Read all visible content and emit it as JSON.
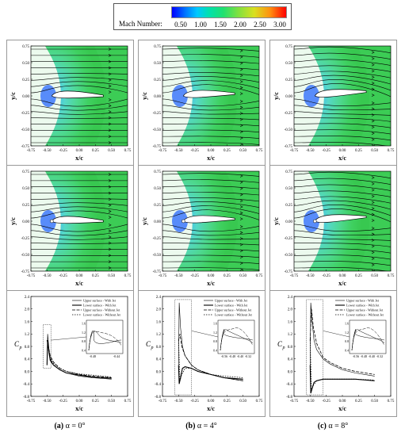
{
  "colorbar": {
    "title": "Mach Number:",
    "ticks": [
      "0.50",
      "1.00",
      "1.50",
      "2.00",
      "2.50",
      "3.00"
    ],
    "colors": [
      "#0000ff",
      "#00c8ff",
      "#20e070",
      "#d8e020",
      "#ff9010",
      "#ff0000"
    ]
  },
  "flow_axes": {
    "xlabel": "x/c",
    "ylabel": "y/c",
    "xticks": [
      "-0.75",
      "-0.50",
      "-0.25",
      "0.00",
      "0.25",
      "0.50",
      "0.75"
    ],
    "yticks": [
      "0.75",
      "0.50",
      "0.25",
      "0.00",
      "-0.25",
      "-0.50",
      "-0.75"
    ]
  },
  "cp_axes": {
    "xlabel": "x/c",
    "ylabel": "C",
    "ylabel_sub": "p",
    "xticks": [
      "-0.75",
      "-0.50",
      "-0.25",
      "0.00",
      "0.25",
      "0.50",
      "0.75"
    ],
    "yticks": [
      "2.4",
      "2.0",
      "1.6",
      "1.2",
      "0.8",
      "0.4",
      "0.0",
      "-0.4",
      "-0.8"
    ]
  },
  "legend": [
    "Upper surface - With Jet",
    "Lower surface - With Jet",
    "Upper surface - Without Jet",
    "Lower surface - Without Jet"
  ],
  "insets": [
    {
      "yticks": [
        "1.6",
        "1.2",
        "0.8",
        "0.4"
      ],
      "xticks": [
        "-0.48",
        "-0.44"
      ]
    },
    {
      "yticks": [
        "1.6",
        "1.2",
        "0.8",
        "0.4"
      ],
      "xticks": [
        "-0.56",
        "-0.48",
        "-0.40",
        "-0.32"
      ]
    },
    {
      "yticks": [
        "1.6",
        "1.2",
        "0.8",
        "0.4"
      ],
      "xticks": [
        "-0.56",
        "-0.48",
        "-0.40",
        "-0.32"
      ]
    }
  ],
  "captions": [
    {
      "letter": "(a)",
      "text": "α = 0°"
    },
    {
      "letter": "(b)",
      "text": "α = 4°"
    },
    {
      "letter": "(c)",
      "text": "α = 8°"
    }
  ],
  "chart_data": [
    {
      "type": "line",
      "panel": "(a) α = 0°",
      "title": "",
      "xlabel": "x/c",
      "ylabel": "Cp",
      "xlim": [
        -0.75,
        0.75
      ],
      "ylim": [
        -0.8,
        2.4
      ],
      "series": [
        {
          "name": "Upper surface - With Jet",
          "x": [
            -0.5,
            -0.49,
            -0.47,
            -0.45,
            -0.4,
            -0.3,
            -0.2,
            0.0,
            0.2,
            0.5
          ],
          "y": [
            0.2,
            1.2,
            0.7,
            0.4,
            0.2,
            0.05,
            -0.05,
            -0.15,
            -0.2,
            -0.25
          ]
        },
        {
          "name": "Lower surface - With Jet",
          "x": [
            -0.5,
            -0.49,
            -0.47,
            -0.45,
            -0.4,
            -0.3,
            -0.2,
            0.0,
            0.2,
            0.5
          ],
          "y": [
            0.2,
            1.0,
            0.6,
            0.35,
            0.2,
            0.05,
            -0.05,
            -0.12,
            -0.18,
            -0.22
          ]
        },
        {
          "name": "Upper surface - Without Jet",
          "x": [
            -0.5,
            -0.48,
            -0.45,
            -0.4,
            -0.3,
            -0.2,
            0.0,
            0.2,
            0.5
          ],
          "y": [
            1.0,
            0.8,
            0.5,
            0.3,
            0.1,
            0.0,
            -0.1,
            -0.15,
            -0.2
          ]
        },
        {
          "name": "Lower surface - Without Jet",
          "x": [
            -0.5,
            -0.48,
            -0.45,
            -0.4,
            -0.3,
            -0.2,
            0.0,
            0.2,
            0.5
          ],
          "y": [
            1.0,
            0.7,
            0.45,
            0.25,
            0.1,
            0.0,
            -0.08,
            -0.12,
            -0.18
          ]
        }
      ]
    },
    {
      "type": "line",
      "panel": "(b) α = 4°",
      "title": "",
      "xlabel": "x/c",
      "ylabel": "Cp",
      "xlim": [
        -0.75,
        0.75
      ],
      "ylim": [
        -0.8,
        2.4
      ],
      "series": [
        {
          "name": "Upper surface - With Jet",
          "x": [
            -0.5,
            -0.49,
            -0.47,
            -0.44,
            -0.4,
            -0.3,
            -0.2,
            0.0,
            0.2,
            0.5
          ],
          "y": [
            0.2,
            2.2,
            1.4,
            0.8,
            0.5,
            0.2,
            0.05,
            -0.1,
            -0.2,
            -0.3
          ]
        },
        {
          "name": "Lower surface - With Jet",
          "x": [
            -0.5,
            -0.49,
            -0.47,
            -0.44,
            -0.4,
            -0.3,
            -0.2,
            0.0,
            0.2,
            0.5
          ],
          "y": [
            0.2,
            -0.4,
            -0.2,
            0.1,
            0.15,
            0.1,
            0.0,
            -0.1,
            -0.2,
            -0.25
          ]
        },
        {
          "name": "Upper surface - Without Jet",
          "x": [
            -0.5,
            -0.48,
            -0.45,
            -0.4,
            -0.3,
            -0.2,
            0.0,
            0.2,
            0.5
          ],
          "y": [
            1.0,
            1.2,
            0.8,
            0.5,
            0.2,
            0.05,
            -0.1,
            -0.2,
            -0.3
          ]
        },
        {
          "name": "Lower surface - Without Jet",
          "x": [
            -0.5,
            -0.48,
            -0.45,
            -0.4,
            -0.3,
            -0.2,
            0.0,
            0.2,
            0.5
          ],
          "y": [
            1.0,
            -0.3,
            -0.1,
            0.1,
            0.1,
            0.0,
            -0.1,
            -0.15,
            -0.2
          ]
        }
      ]
    },
    {
      "type": "line",
      "panel": "(c) α = 8°",
      "title": "",
      "xlabel": "x/c",
      "ylabel": "Cp",
      "xlim": [
        -0.75,
        0.75
      ],
      "ylim": [
        -0.8,
        2.4
      ],
      "series": [
        {
          "name": "Upper surface - With Jet",
          "x": [
            -0.5,
            -0.49,
            -0.47,
            -0.44,
            -0.4,
            -0.3,
            -0.2,
            0.0,
            0.2,
            0.5
          ],
          "y": [
            0.2,
            2.2,
            1.6,
            1.0,
            0.7,
            0.4,
            0.25,
            0.05,
            -0.05,
            -0.15
          ]
        },
        {
          "name": "Lower surface - With Jet",
          "x": [
            -0.5,
            -0.49,
            -0.47,
            -0.44,
            -0.4,
            -0.3,
            -0.2,
            0.0,
            0.2,
            0.5
          ],
          "y": [
            0.2,
            -0.7,
            -0.55,
            -0.35,
            -0.3,
            -0.25,
            -0.25,
            -0.25,
            -0.25,
            -0.3
          ]
        },
        {
          "name": "Upper surface - Without Jet",
          "x": [
            -0.5,
            -0.48,
            -0.45,
            -0.4,
            -0.3,
            -0.2,
            0.0,
            0.2,
            0.5
          ],
          "y": [
            1.0,
            2.0,
            1.4,
            0.9,
            0.45,
            0.3,
            0.1,
            0.0,
            -0.1
          ]
        },
        {
          "name": "Lower surface - Without Jet",
          "x": [
            -0.5,
            -0.48,
            -0.45,
            -0.4,
            -0.3,
            -0.2,
            0.0,
            0.2,
            0.5
          ],
          "y": [
            1.0,
            -0.6,
            -0.45,
            -0.3,
            -0.25,
            -0.25,
            -0.25,
            -0.25,
            -0.28
          ]
        }
      ]
    }
  ]
}
